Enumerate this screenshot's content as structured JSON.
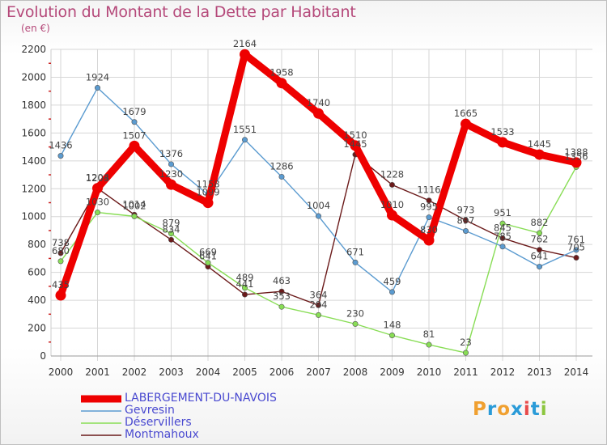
{
  "header": {
    "title": "Evolution du Montant de la Dette par Habitant",
    "unit": "(en €)"
  },
  "logo": {
    "text": "Proxiti",
    "colors": [
      "#f0a030",
      "#2a9bd8",
      "#f0a030",
      "#2a9bd8",
      "#e84a4a",
      "#2a9bd8",
      "#8cc63f"
    ]
  },
  "chart_data": {
    "type": "line",
    "title": "Evolution du Montant de la Dette par Habitant",
    "ylabel": "(en €)",
    "xlabel": "",
    "ylim": [
      0,
      2200
    ],
    "yticks": [
      0,
      200,
      400,
      600,
      800,
      1000,
      1200,
      1400,
      1600,
      1800,
      2000,
      2200
    ],
    "x": [
      "2000",
      "2001",
      "2002",
      "2003",
      "2004",
      "2005",
      "2006",
      "2007",
      "2008",
      "2009",
      "2010",
      "2011",
      "2012",
      "2013",
      "2014"
    ],
    "grid": true,
    "legend_position": "bottom-left",
    "series": [
      {
        "name": "Montmahoux",
        "color": "#6b1a1a",
        "values": [
          738,
          1203,
          1014,
          834,
          641,
          441,
          463,
          364,
          1445,
          1228,
          1116,
          973,
          845,
          762,
          705
        ]
      },
      {
        "name": "Déservillers",
        "color": "#88dd55",
        "values": [
          680,
          1030,
          1002,
          879,
          669,
          489,
          353,
          294,
          230,
          148,
          81,
          23,
          951,
          882,
          1356
        ]
      },
      {
        "name": "Gevresin",
        "color": "#5b9bd0",
        "values": [
          1436,
          1924,
          1679,
          1376,
          1158,
          1551,
          1286,
          1004,
          671,
          459,
          995,
          897,
          785,
          641,
          761
        ]
      },
      {
        "name": "LABERGEMENT-DU-NAVOIS",
        "color": "#ee0000",
        "values": [
          435,
          1204,
          1507,
          1230,
          1099,
          2164,
          1958,
          1740,
          1510,
          1010,
          830,
          1665,
          1533,
          1445,
          1388
        ]
      }
    ]
  }
}
